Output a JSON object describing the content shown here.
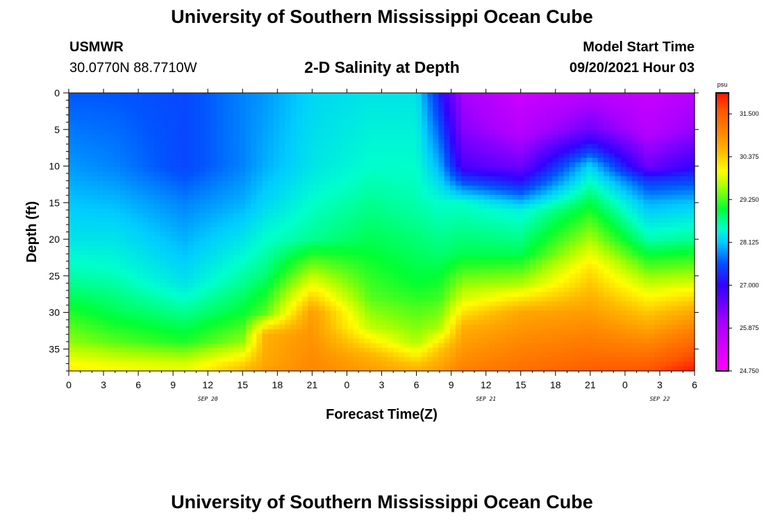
{
  "page": {
    "title_top": "University of Southern Mississippi Ocean Cube",
    "title_bottom": "University of Southern Mississippi Ocean Cube",
    "station": "USMWR",
    "coords": "30.0770N  88.7710W",
    "subtitle": "2-D Salinity at Depth",
    "model_start_label": "Model Start Time",
    "model_start_value": "09/20/2021 Hour 03"
  },
  "chart_data": {
    "type": "heatmap",
    "title": "2-D Salinity at Depth",
    "xlabel": "Forecast Time(Z)",
    "ylabel": "Depth (ft)",
    "x_ticks": [
      "0",
      "3",
      "6",
      "9",
      "12",
      "15",
      "18",
      "21",
      "0",
      "3",
      "6",
      "9",
      "12",
      "15",
      "18",
      "21",
      "0",
      "3",
      "6"
    ],
    "x_hours": [
      0,
      3,
      6,
      9,
      12,
      15,
      18,
      21,
      24,
      27,
      30,
      33,
      36,
      39,
      42,
      45,
      48,
      51,
      54
    ],
    "x_range": [
      0,
      54
    ],
    "date_labels": [
      {
        "text": "SEP 20",
        "hour": 12
      },
      {
        "text": "SEP 21",
        "hour": 36
      },
      {
        "text": "SEP 22",
        "hour": 51
      }
    ],
    "y_ticks": [
      "0",
      "5",
      "10",
      "15",
      "20",
      "25",
      "30",
      "35"
    ],
    "y_values": [
      0,
      5,
      10,
      15,
      20,
      25,
      30,
      35
    ],
    "y_range": [
      0,
      38
    ],
    "y_direction": "down",
    "colorbar": {
      "unit": "psu",
      "min": 24.75,
      "max": 32.05,
      "labels": [
        "31.500",
        "30.375",
        "29.250",
        "28.125",
        "27.000",
        "25.875",
        "24.750"
      ],
      "label_values": [
        31.5,
        30.375,
        29.25,
        28.125,
        27.0,
        25.875,
        24.75
      ],
      "stops": [
        {
          "v": 24.75,
          "c": "#ff00ff"
        },
        {
          "v": 26.0,
          "c": "#aa00ff"
        },
        {
          "v": 27.0,
          "c": "#3300ff"
        },
        {
          "v": 27.6,
          "c": "#0055ff"
        },
        {
          "v": 28.125,
          "c": "#00ccff"
        },
        {
          "v": 28.5,
          "c": "#00ffcc"
        },
        {
          "v": 29.0,
          "c": "#00ff33"
        },
        {
          "v": 29.6,
          "c": "#aaff00"
        },
        {
          "v": 30.0,
          "c": "#ffff00"
        },
        {
          "v": 30.5,
          "c": "#ffbb00"
        },
        {
          "v": 31.0,
          "c": "#ff8800"
        },
        {
          "v": 31.6,
          "c": "#ff5500"
        },
        {
          "v": 32.05,
          "c": "#ff1100"
        }
      ]
    },
    "field_profiles": [
      {
        "hour": 0,
        "depth": [
          0,
          10,
          20,
          26,
          30,
          34,
          37,
          38
        ],
        "salinity": [
          27.6,
          27.9,
          28.3,
          28.7,
          29.1,
          29.5,
          30.0,
          30.1
        ]
      },
      {
        "hour": 4,
        "depth": [
          0,
          10,
          18,
          24,
          30,
          34,
          37,
          38
        ],
        "salinity": [
          27.6,
          27.8,
          28.2,
          28.5,
          28.9,
          29.3,
          29.9,
          30.0
        ]
      },
      {
        "hour": 10,
        "depth": [
          0,
          10,
          15,
          22,
          26,
          30,
          34,
          37,
          38
        ],
        "salinity": [
          27.5,
          27.5,
          27.8,
          28.1,
          28.3,
          28.7,
          29.1,
          29.8,
          29.9
        ]
      },
      {
        "hour": 15,
        "depth": [
          0,
          10,
          15,
          20,
          26,
          30,
          34,
          37,
          38
        ],
        "salinity": [
          27.8,
          27.8,
          28.0,
          28.3,
          28.7,
          29.0,
          29.5,
          30.3,
          30.5
        ]
      },
      {
        "hour": 17,
        "depth": [
          0,
          10,
          15,
          20,
          25,
          30,
          33,
          37,
          38
        ],
        "salinity": [
          27.9,
          28.0,
          28.2,
          28.5,
          28.8,
          29.3,
          30.6,
          30.7,
          30.8
        ]
      },
      {
        "hour": 21,
        "depth": [
          0,
          10,
          15,
          20,
          23,
          26,
          30,
          37,
          38
        ],
        "salinity": [
          28.2,
          28.3,
          28.5,
          28.7,
          29.3,
          29.9,
          30.8,
          31.0,
          31.0
        ]
      },
      {
        "hour": 26,
        "depth": [
          0,
          10,
          15,
          20,
          24,
          28,
          32,
          36,
          38
        ],
        "salinity": [
          28.3,
          28.5,
          28.7,
          28.9,
          29.1,
          29.3,
          29.7,
          30.6,
          30.8
        ]
      },
      {
        "hour": 30,
        "depth": [
          0,
          10,
          15,
          20,
          26,
          30,
          34,
          37,
          38
        ],
        "salinity": [
          28.3,
          28.5,
          28.6,
          28.8,
          29.0,
          29.3,
          29.6,
          30.4,
          30.6
        ]
      },
      {
        "hour": 32,
        "depth": [
          0,
          5,
          10,
          15,
          22,
          28,
          32,
          35,
          38
        ],
        "salinity": [
          27.2,
          27.6,
          28.0,
          28.5,
          28.8,
          29.2,
          29.6,
          30.4,
          30.8
        ]
      },
      {
        "hour": 34,
        "depth": [
          0,
          5,
          10,
          12,
          15,
          22,
          28,
          32,
          38
        ],
        "salinity": [
          26.0,
          26.3,
          26.8,
          27.5,
          28.5,
          28.9,
          29.8,
          30.6,
          31.1
        ]
      },
      {
        "hour": 39,
        "depth": [
          0,
          5,
          10,
          13,
          16,
          22,
          26,
          30,
          38
        ],
        "salinity": [
          25.5,
          25.8,
          26.5,
          27.4,
          28.4,
          28.9,
          29.6,
          30.7,
          31.3
        ]
      },
      {
        "hour": 45,
        "depth": [
          0,
          5,
          8,
          10,
          14,
          20,
          24,
          30,
          38
        ],
        "salinity": [
          25.8,
          26.5,
          27.5,
          28.2,
          28.8,
          29.6,
          30.2,
          30.8,
          31.5
        ]
      },
      {
        "hour": 50,
        "depth": [
          0,
          5,
          10,
          12,
          15,
          20,
          26,
          30,
          38
        ],
        "salinity": [
          25.6,
          25.8,
          26.5,
          27.4,
          28.0,
          28.6,
          29.7,
          30.4,
          31.6
        ]
      },
      {
        "hour": 54,
        "depth": [
          0,
          5,
          10,
          12,
          15,
          20,
          25,
          30,
          38
        ],
        "salinity": [
          25.8,
          26.2,
          27.0,
          27.5,
          28.1,
          28.7,
          29.6,
          30.7,
          32.0
        ]
      }
    ]
  }
}
